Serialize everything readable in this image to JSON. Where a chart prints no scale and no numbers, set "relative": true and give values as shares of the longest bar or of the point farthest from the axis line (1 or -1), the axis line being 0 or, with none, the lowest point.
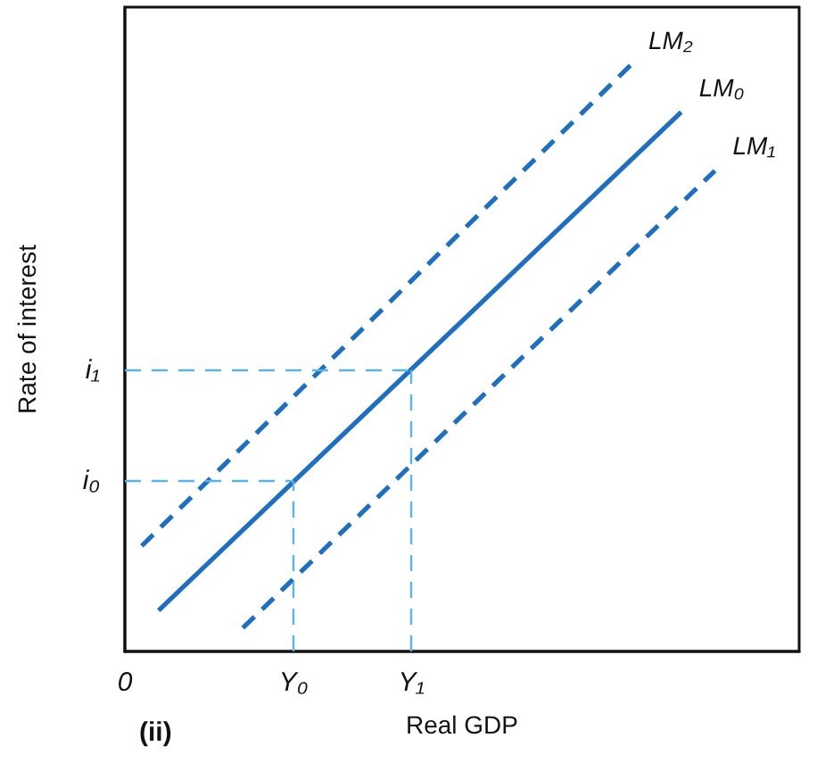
{
  "chart_data": {
    "type": "line",
    "relative": true,
    "xlabel": "Real GDP",
    "ylabel": "Rate of interest",
    "annotations": [
      "(ii)"
    ],
    "categories": [
      "0",
      null,
      null,
      null,
      null,
      null,
      null,
      null,
      null,
      null,
      "Y₀",
      null,
      null,
      null,
      null,
      null,
      null,
      "Y₁",
      null,
      null,
      null,
      null,
      null,
      null,
      null,
      null,
      null,
      null,
      null,
      null,
      null,
      null,
      null,
      null,
      null,
      null,
      null,
      null,
      null,
      null,
      null
    ],
    "grid": false,
    "legend": false,
    "marker": "none",
    "series": [
      {
        "name": "LM₂",
        "color": "#1f6fc1",
        "line_style": "dashed",
        "values": [
          null,
          0.18,
          null,
          null,
          null,
          null,
          null,
          null,
          null,
          null,
          null,
          null,
          null,
          null,
          null,
          null,
          null,
          null,
          null,
          null,
          null,
          null,
          null,
          null,
          null,
          null,
          null,
          null,
          null,
          null,
          1,
          null,
          null,
          null,
          null,
          null,
          null,
          null,
          null,
          null,
          null
        ]
      },
      {
        "name": "LM₀",
        "color": "#1f6fc1",
        "line_style": "solid",
        "values": [
          null,
          null,
          0.07,
          null,
          null,
          null,
          null,
          null,
          null,
          null,
          null,
          null,
          null,
          null,
          null,
          null,
          null,
          null,
          null,
          null,
          null,
          null,
          null,
          null,
          null,
          null,
          null,
          null,
          null,
          null,
          null,
          null,
          null,
          0.92,
          null,
          null,
          null,
          null,
          null,
          null,
          null
        ]
      },
      {
        "name": "LM₁",
        "color": "#1f6fc1",
        "line_style": "dashed",
        "values": [
          null,
          null,
          null,
          null,
          null,
          null,
          null,
          0.04,
          null,
          null,
          null,
          null,
          null,
          null,
          null,
          null,
          null,
          null,
          null,
          null,
          null,
          null,
          null,
          null,
          null,
          null,
          null,
          null,
          null,
          null,
          null,
          null,
          null,
          null,
          null,
          0.82,
          null,
          null,
          null,
          null,
          null
        ]
      }
    ],
    "ref_lines": [
      {
        "axis": "x",
        "value": "Y₀",
        "color": "#5ab4e6",
        "line_style": "dashed"
      },
      {
        "axis": "y",
        "value": 0.29,
        "label": "i₀",
        "color": "#5ab4e6",
        "line_style": "dashed"
      },
      {
        "axis": "x",
        "value": "Y₁",
        "color": "#5ab4e6",
        "line_style": "dashed"
      },
      {
        "axis": "y",
        "value": 0.48,
        "label": "i₁",
        "color": "#5ab4e6",
        "line_style": "dashed"
      }
    ]
  }
}
